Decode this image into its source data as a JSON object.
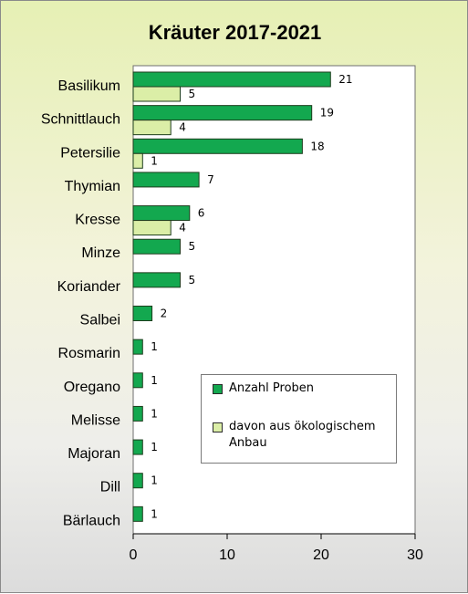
{
  "chart_data": {
    "type": "bar",
    "orientation": "horizontal",
    "title": "Kräuter 2017-2021",
    "categories": [
      "Basilikum",
      "Schnittlauch",
      "Petersilie",
      "Thymian",
      "Kresse",
      "Minze",
      "Koriander",
      "Salbei",
      "Rosmarin",
      "Oregano",
      "Melisse",
      "Majoran",
      "Dill",
      "Bärlauch"
    ],
    "series": [
      {
        "name": "Anzahl Proben",
        "color": "#13a84f",
        "values": [
          21,
          19,
          18,
          7,
          6,
          5,
          5,
          2,
          1,
          1,
          1,
          1,
          1,
          1
        ]
      },
      {
        "name": "davon aus ökologischem Anbau",
        "color": "#dbeea7",
        "values": [
          5,
          4,
          1,
          null,
          4,
          null,
          null,
          null,
          null,
          null,
          null,
          null,
          null,
          null
        ]
      }
    ],
    "xlim": [
      0,
      30
    ],
    "xticks": [
      0,
      10,
      20,
      30
    ],
    "grid": false,
    "legend_position": "bottom-right"
  }
}
